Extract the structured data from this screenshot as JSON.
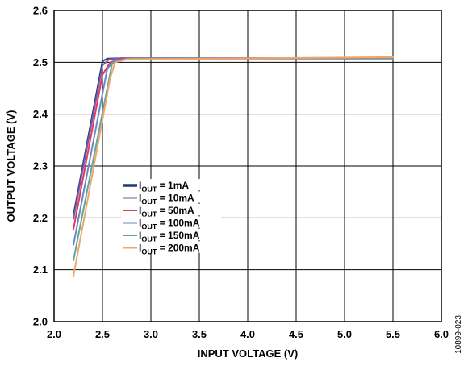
{
  "chart_data": {
    "type": "line",
    "xlabel": "INPUT VOLTAGE (V)",
    "ylabel": "OUTPUT VOLTAGE (V)",
    "xlim": [
      2.0,
      6.0
    ],
    "ylim": [
      2.0,
      2.6
    ],
    "x_ticks": [
      "2.0",
      "2.5",
      "3.0",
      "3.5",
      "4.0",
      "4.5",
      "5.0",
      "5.5",
      "6.0"
    ],
    "y_ticks": [
      "2.6",
      "2.5",
      "2.4",
      "2.3",
      "2.2",
      "2.1",
      "2.0"
    ],
    "grid": true,
    "legend_position": "center-left",
    "figure_id": "10899-023",
    "series": [
      {
        "name": "I",
        "sub": "OUT",
        "suffix": " = 1mA",
        "color": "#1f3a78",
        "points": [
          [
            2.2,
            2.205
          ],
          [
            2.5,
            2.502
          ],
          [
            2.55,
            2.507
          ],
          [
            2.7,
            2.508
          ],
          [
            5.5,
            2.508
          ]
        ]
      },
      {
        "name": "I",
        "sub": "OUT",
        "suffix": " = 10mA",
        "color": "#7a5aa8",
        "points": [
          [
            2.2,
            2.198
          ],
          [
            2.5,
            2.494
          ],
          [
            2.57,
            2.506
          ],
          [
            2.7,
            2.508
          ],
          [
            5.5,
            2.508
          ]
        ]
      },
      {
        "name": "I",
        "sub": "OUT",
        "suffix": " = 50mA",
        "color": "#e03a5c",
        "points": [
          [
            2.2,
            2.178
          ],
          [
            2.5,
            2.476
          ],
          [
            2.58,
            2.5
          ],
          [
            2.7,
            2.507
          ],
          [
            5.5,
            2.507
          ]
        ]
      },
      {
        "name": "I",
        "sub": "OUT",
        "suffix": " = 100mA",
        "color": "#6f86c4",
        "points": [
          [
            2.2,
            2.148
          ],
          [
            2.55,
            2.488
          ],
          [
            2.62,
            2.502
          ],
          [
            2.75,
            2.507
          ],
          [
            5.5,
            2.508
          ]
        ]
      },
      {
        "name": "I",
        "sub": "OUT",
        "suffix": " = 150mA",
        "color": "#5ea8a0",
        "points": [
          [
            2.2,
            2.118
          ],
          [
            2.6,
            2.498
          ],
          [
            2.68,
            2.503
          ],
          [
            2.8,
            2.507
          ],
          [
            5.5,
            2.508
          ]
        ]
      },
      {
        "name": "I",
        "sub": "OUT",
        "suffix": " = 200mA",
        "color": "#f0a66a",
        "points": [
          [
            2.2,
            2.088
          ],
          [
            2.58,
            2.47
          ],
          [
            2.63,
            2.5
          ],
          [
            2.75,
            2.506
          ],
          [
            5.5,
            2.51
          ]
        ]
      }
    ]
  }
}
